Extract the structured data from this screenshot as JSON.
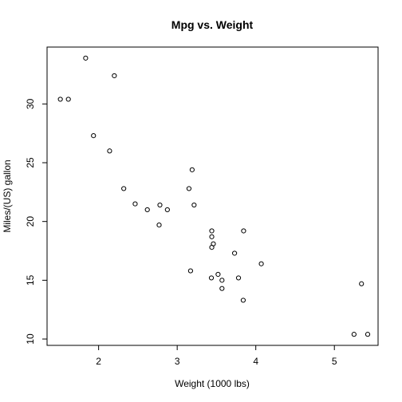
{
  "chart_data": {
    "type": "scatter",
    "title": "Mpg vs. Weight",
    "xlabel": "Weight (1000 lbs)",
    "ylabel": "Miles/(US) gallon",
    "xlim": [
      1.5,
      5.4
    ],
    "ylim": [
      10.4,
      33.9
    ],
    "xticks": [
      2,
      3,
      4,
      5
    ],
    "yticks": [
      10,
      15,
      20,
      25,
      30
    ],
    "grid": false,
    "points": [
      {
        "x": 2.62,
        "y": 21.0
      },
      {
        "x": 2.875,
        "y": 21.0
      },
      {
        "x": 2.32,
        "y": 22.8
      },
      {
        "x": 3.215,
        "y": 21.4
      },
      {
        "x": 3.44,
        "y": 18.7
      },
      {
        "x": 3.46,
        "y": 18.1
      },
      {
        "x": 3.57,
        "y": 14.3
      },
      {
        "x": 3.19,
        "y": 24.4
      },
      {
        "x": 3.15,
        "y": 22.8
      },
      {
        "x": 3.44,
        "y": 19.2
      },
      {
        "x": 3.44,
        "y": 17.8
      },
      {
        "x": 4.07,
        "y": 16.4
      },
      {
        "x": 3.73,
        "y": 17.3
      },
      {
        "x": 3.78,
        "y": 15.2
      },
      {
        "x": 5.25,
        "y": 10.4
      },
      {
        "x": 5.424,
        "y": 10.4
      },
      {
        "x": 5.345,
        "y": 14.7
      },
      {
        "x": 2.2,
        "y": 32.4
      },
      {
        "x": 1.615,
        "y": 30.4
      },
      {
        "x": 1.835,
        "y": 33.9
      },
      {
        "x": 2.465,
        "y": 21.5
      },
      {
        "x": 3.52,
        "y": 15.5
      },
      {
        "x": 3.435,
        "y": 15.2
      },
      {
        "x": 3.84,
        "y": 13.3
      },
      {
        "x": 3.845,
        "y": 19.2
      },
      {
        "x": 1.935,
        "y": 27.3
      },
      {
        "x": 2.14,
        "y": 26.0
      },
      {
        "x": 1.513,
        "y": 30.4
      },
      {
        "x": 3.17,
        "y": 15.8
      },
      {
        "x": 2.77,
        "y": 19.7
      },
      {
        "x": 3.57,
        "y": 15.0
      },
      {
        "x": 2.78,
        "y": 21.4
      }
    ]
  }
}
